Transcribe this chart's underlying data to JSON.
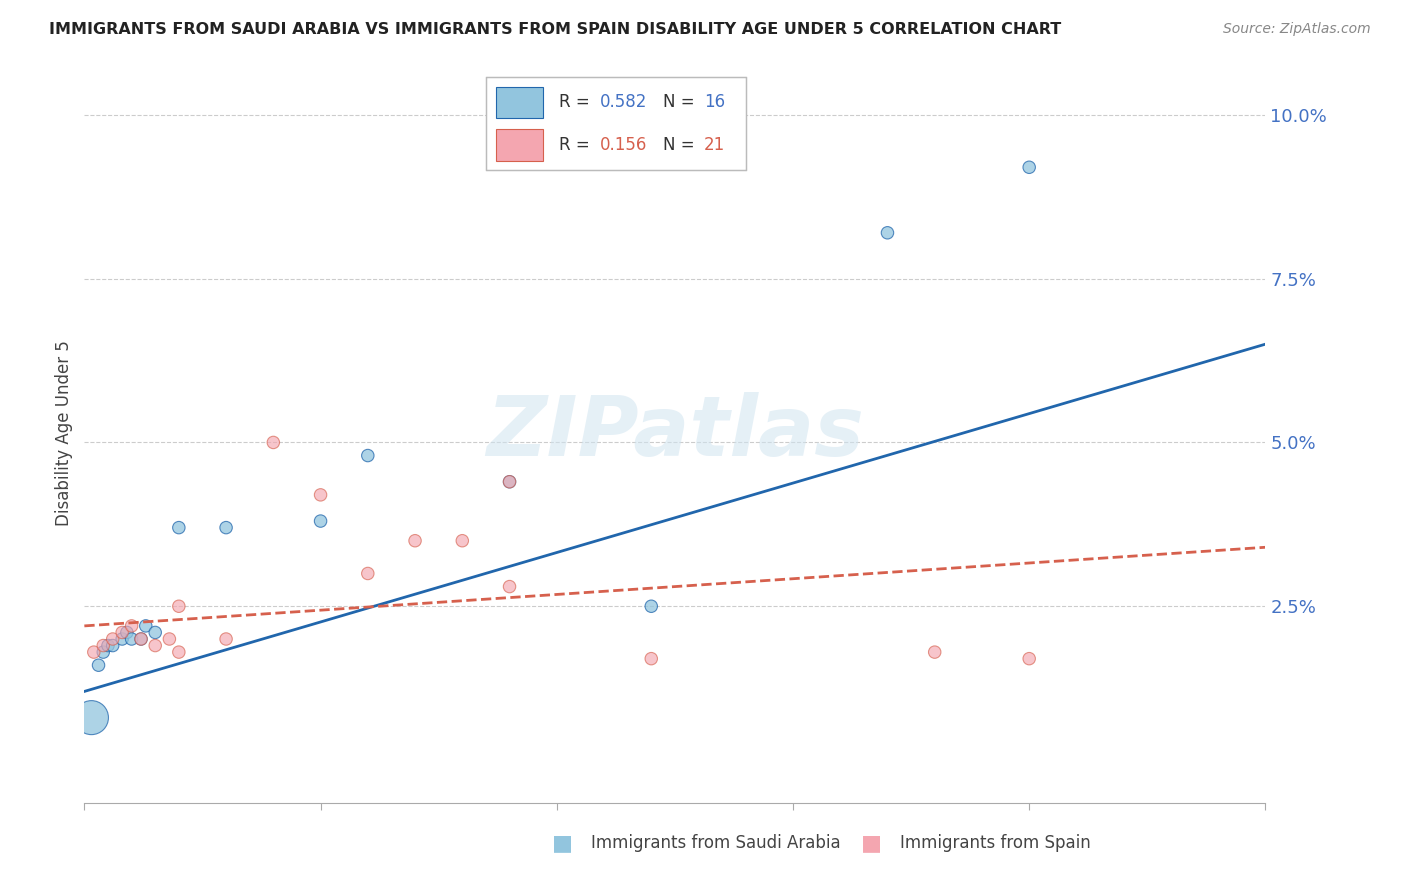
{
  "title": "IMMIGRANTS FROM SAUDI ARABIA VS IMMIGRANTS FROM SPAIN DISABILITY AGE UNDER 5 CORRELATION CHART",
  "source": "Source: ZipAtlas.com",
  "ylabel": "Disability Age Under 5",
  "ytick_labels": [
    "10.0%",
    "7.5%",
    "5.0%",
    "2.5%"
  ],
  "ytick_vals": [
    0.1,
    0.075,
    0.05,
    0.025
  ],
  "xlim": [
    0.0,
    0.025
  ],
  "ylim": [
    -0.005,
    0.108
  ],
  "saudi_color": "#92c5de",
  "spain_color": "#f4a6b0",
  "saudi_line_color": "#2166ac",
  "spain_line_color": "#d6604d",
  "watermark": "ZIPatlas",
  "saudi_x": [
    0.00015,
    0.0003,
    0.0004,
    0.0005,
    0.0006,
    0.0008,
    0.0009,
    0.001,
    0.0012,
    0.0013,
    0.0015,
    0.002,
    0.003,
    0.005,
    0.006,
    0.009,
    0.012,
    0.017,
    0.02
  ],
  "saudi_y": [
    0.008,
    0.016,
    0.018,
    0.019,
    0.019,
    0.02,
    0.021,
    0.02,
    0.02,
    0.022,
    0.021,
    0.037,
    0.037,
    0.038,
    0.048,
    0.044,
    0.025,
    0.082,
    0.092
  ],
  "saudi_sizes": [
    600,
    80,
    80,
    80,
    80,
    80,
    80,
    80,
    80,
    80,
    80,
    80,
    80,
    80,
    80,
    80,
    80,
    80,
    80
  ],
  "spain_x": [
    0.0002,
    0.0004,
    0.0006,
    0.0008,
    0.001,
    0.0012,
    0.0015,
    0.0018,
    0.002,
    0.002,
    0.003,
    0.004,
    0.005,
    0.006,
    0.007,
    0.008,
    0.009,
    0.009,
    0.012,
    0.018,
    0.02
  ],
  "spain_y": [
    0.018,
    0.019,
    0.02,
    0.021,
    0.022,
    0.02,
    0.019,
    0.02,
    0.018,
    0.025,
    0.02,
    0.05,
    0.042,
    0.03,
    0.035,
    0.035,
    0.028,
    0.044,
    0.017,
    0.018,
    0.017
  ],
  "spain_sizes": [
    80,
    80,
    80,
    80,
    80,
    80,
    80,
    80,
    80,
    80,
    80,
    80,
    80,
    80,
    80,
    80,
    80,
    80,
    80,
    80,
    80
  ],
  "saudi_trend_x": [
    0.0,
    0.025
  ],
  "saudi_trend_y": [
    0.012,
    0.065
  ],
  "spain_trend_x": [
    0.0,
    0.025
  ],
  "spain_trend_y": [
    0.022,
    0.034
  ],
  "background_color": "#ffffff",
  "grid_color": "#cccccc"
}
